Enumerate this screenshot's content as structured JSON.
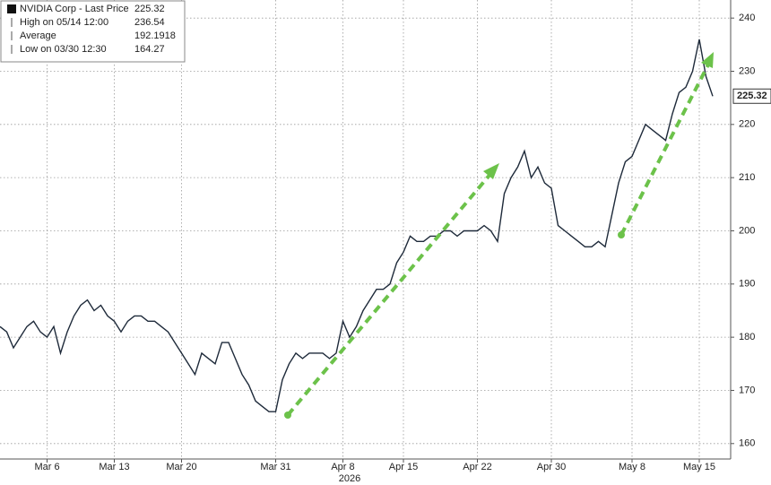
{
  "chart_data": {
    "type": "line",
    "legend_items": [
      {
        "label": "NVIDIA Corp - Last Price",
        "value": 225.32
      },
      {
        "label": "High on 05/14 12:00",
        "value": 236.54
      },
      {
        "label": "Average",
        "value": 192.1918
      },
      {
        "label": "Low on 03/30 12:30",
        "value": 164.27
      }
    ],
    "year_label": "2026",
    "categories": [
      null,
      null,
      null,
      null,
      null,
      null,
      null,
      "Mar 6",
      null,
      null,
      null,
      null,
      null,
      null,
      null,
      null,
      null,
      "Mar 13",
      null,
      null,
      null,
      null,
      null,
      null,
      null,
      null,
      null,
      "Mar 20",
      null,
      null,
      null,
      null,
      null,
      null,
      null,
      null,
      null,
      null,
      null,
      null,
      null,
      "Mar 31",
      null,
      null,
      null,
      null,
      null,
      null,
      null,
      null,
      null,
      "Apr 8",
      null,
      null,
      null,
      null,
      null,
      null,
      null,
      null,
      "Apr 15",
      null,
      null,
      null,
      null,
      null,
      null,
      null,
      null,
      null,
      null,
      "Apr 22",
      null,
      null,
      null,
      null,
      null,
      null,
      null,
      null,
      null,
      null,
      "Apr 30",
      null,
      null,
      null,
      null,
      null,
      null,
      null,
      null,
      null,
      null,
      null,
      "May 8",
      null,
      null,
      null,
      null,
      null,
      null,
      null,
      null,
      null,
      "May 15",
      null,
      null
    ],
    "series": [
      {
        "color": "#1e2a3a",
        "values": [
          182,
          181,
          178,
          180,
          182,
          183,
          181,
          180,
          182,
          177,
          181,
          184,
          186,
          187,
          185,
          186,
          184,
          183,
          181,
          183,
          184,
          184,
          183,
          183,
          182,
          181,
          179,
          177,
          175,
          173,
          177,
          176,
          175,
          179,
          179,
          176,
          173,
          171,
          168,
          167,
          166,
          166,
          172,
          175,
          177,
          176,
          177,
          177,
          177,
          176,
          177,
          183,
          180,
          182,
          185,
          187,
          189,
          189,
          190,
          194,
          196,
          199,
          198,
          198,
          199,
          199,
          200,
          200,
          199,
          200,
          200,
          200,
          201,
          200,
          198,
          207,
          210,
          212,
          215,
          210,
          212,
          209,
          208,
          201,
          200,
          199,
          198,
          197,
          197,
          198,
          197,
          203,
          209,
          213,
          214,
          217,
          220,
          219,
          218,
          217,
          222,
          226,
          227,
          230,
          236,
          229,
          225.32
        ]
      }
    ],
    "ylim": [
      157.1,
      243.4
    ],
    "yticks": [
      160,
      170,
      180,
      190,
      200,
      210,
      220,
      230,
      240
    ],
    "grid": true
  }
}
